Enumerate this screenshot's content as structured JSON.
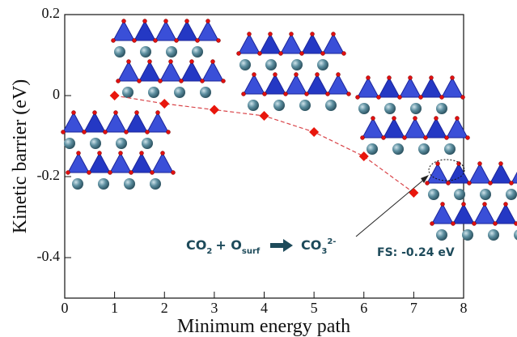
{
  "chart_data": {
    "type": "line",
    "xlabel": "Minimum energy path",
    "ylabel": "Kinetic barrier (eV)",
    "x": [
      1,
      2,
      3,
      4,
      5,
      6,
      7
    ],
    "values": [
      0,
      -0.02,
      -0.035,
      -0.05,
      -0.09,
      -0.15,
      -0.24
    ],
    "color": "#e8160c",
    "line_color": "#d9454a",
    "xlim": [
      0,
      8
    ],
    "xticks": [
      0,
      1,
      2,
      3,
      4,
      5,
      6,
      7,
      8
    ],
    "ylim": [
      -0.5,
      0.2
    ],
    "yticks": [
      0.2,
      0,
      -0.2,
      -0.4
    ],
    "reaction": {
      "reactant1": "CO",
      "reactant1_sub": "2",
      "plus": "+ O",
      "reactant2_sub": "surf",
      "product": "CO",
      "product_sub": "3",
      "product_charge": "2-"
    },
    "fs_label": "FS: -0.24 eV"
  }
}
